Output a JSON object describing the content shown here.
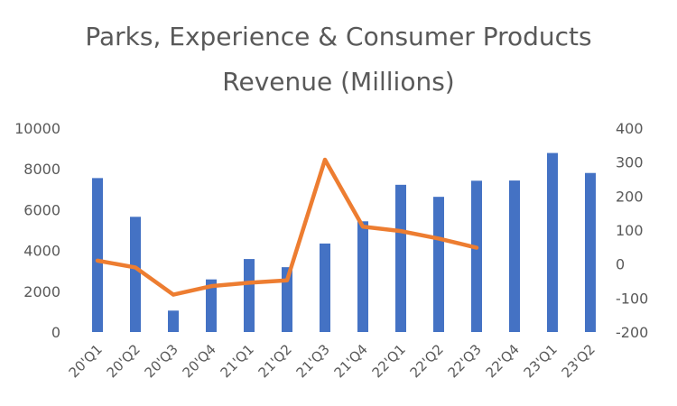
{
  "chart_data": {
    "type": "bar",
    "title_line1": "Parks, Experience & Consumer Products",
    "title_line2": "Revenue (Millions)",
    "categories": [
      "20'Q1",
      "20'Q2",
      "20'Q3",
      "20'Q4",
      "21'Q1",
      "21'Q2",
      "21'Q3",
      "21'Q4",
      "22'Q1",
      "22'Q2",
      "22'Q3",
      "22'Q4",
      "23'Q1",
      "23'Q2"
    ],
    "ylim_left": [
      0,
      10000
    ],
    "yticks_left": [
      0,
      2000,
      4000,
      6000,
      8000,
      10000
    ],
    "ylim_right": [
      -200,
      400
    ],
    "yticks_right": [
      -200,
      -100,
      0,
      100,
      200,
      300,
      400
    ],
    "grid": false,
    "series": [
      {
        "type": "bar",
        "axis": "left",
        "color": "#4472C4",
        "values": [
          7550,
          5650,
          1050,
          2580,
          3580,
          3180,
          4340,
          5430,
          7220,
          6630,
          7420,
          7430,
          8780,
          7800
        ]
      },
      {
        "type": "line",
        "axis": "right",
        "color": "#ED7D31",
        "values": [
          10,
          -10,
          -90,
          -65,
          -55,
          -48,
          307,
          110,
          97,
          75,
          48,
          null,
          null,
          null
        ]
      }
    ]
  }
}
